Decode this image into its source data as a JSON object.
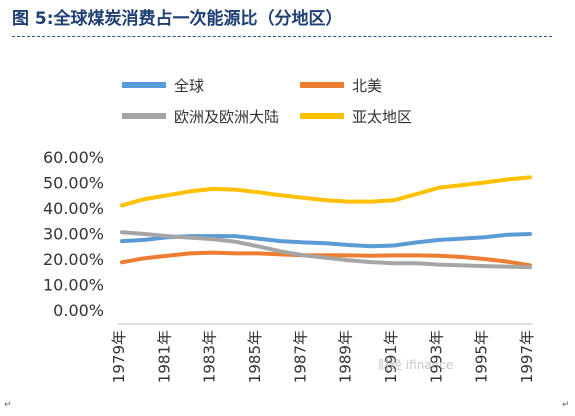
{
  "figure": {
    "title": "图 5:全球煤炭消费占一次能源比（分地区）",
    "watermark": "财经 ifinance",
    "corner_marks": [
      "↵",
      "↵"
    ]
  },
  "colors": {
    "title": "#1f3f74",
    "rule": "#2e5597",
    "axis_text": "#333333"
  },
  "chart_data": {
    "type": "line",
    "title": "",
    "xlabel": "",
    "ylabel": "",
    "x": [
      1979,
      1980,
      1981,
      1982,
      1983,
      1984,
      1985,
      1986,
      1987,
      1988,
      1989,
      1990,
      1991,
      1992,
      1993,
      1994,
      1995,
      1996,
      1997
    ],
    "x_tick_labels": [
      "1979年",
      "1981年",
      "1983年",
      "1985年",
      "1987年",
      "1989年",
      "1991年",
      "1993年",
      "1995年",
      "1997年"
    ],
    "y_ticks": [
      "0.00%",
      "10.00%",
      "20.00%",
      "30.00%",
      "40.00%",
      "50.00%",
      "60.00%"
    ],
    "ylim": [
      0,
      0.6
    ],
    "grid": false,
    "legend_position": "top-left",
    "series": [
      {
        "name": "全球",
        "color": "#5b9bd5",
        "values": [
          0.27,
          0.275,
          0.285,
          0.29,
          0.29,
          0.29,
          0.28,
          0.27,
          0.265,
          0.262,
          0.255,
          0.25,
          0.253,
          0.265,
          0.275,
          0.28,
          0.285,
          0.295,
          0.298
        ]
      },
      {
        "name": "北美",
        "color": "#ed7d31",
        "values": [
          0.187,
          0.203,
          0.213,
          0.222,
          0.225,
          0.222,
          0.222,
          0.218,
          0.215,
          0.215,
          0.214,
          0.213,
          0.214,
          0.214,
          0.213,
          0.208,
          0.2,
          0.19,
          0.175
        ]
      },
      {
        "name": "欧洲及欧洲大陆",
        "color": "#a5a5a5",
        "values": [
          0.305,
          0.298,
          0.29,
          0.284,
          0.278,
          0.268,
          0.25,
          0.23,
          0.215,
          0.205,
          0.195,
          0.188,
          0.183,
          0.183,
          0.178,
          0.175,
          0.172,
          0.17,
          0.168
        ]
      },
      {
        "name": "亚太地区",
        "color": "#ffc000",
        "values": [
          0.41,
          0.435,
          0.45,
          0.465,
          0.475,
          0.472,
          0.462,
          0.45,
          0.44,
          0.43,
          0.425,
          0.425,
          0.43,
          0.455,
          0.48,
          0.49,
          0.5,
          0.512,
          0.52
        ]
      }
    ]
  }
}
